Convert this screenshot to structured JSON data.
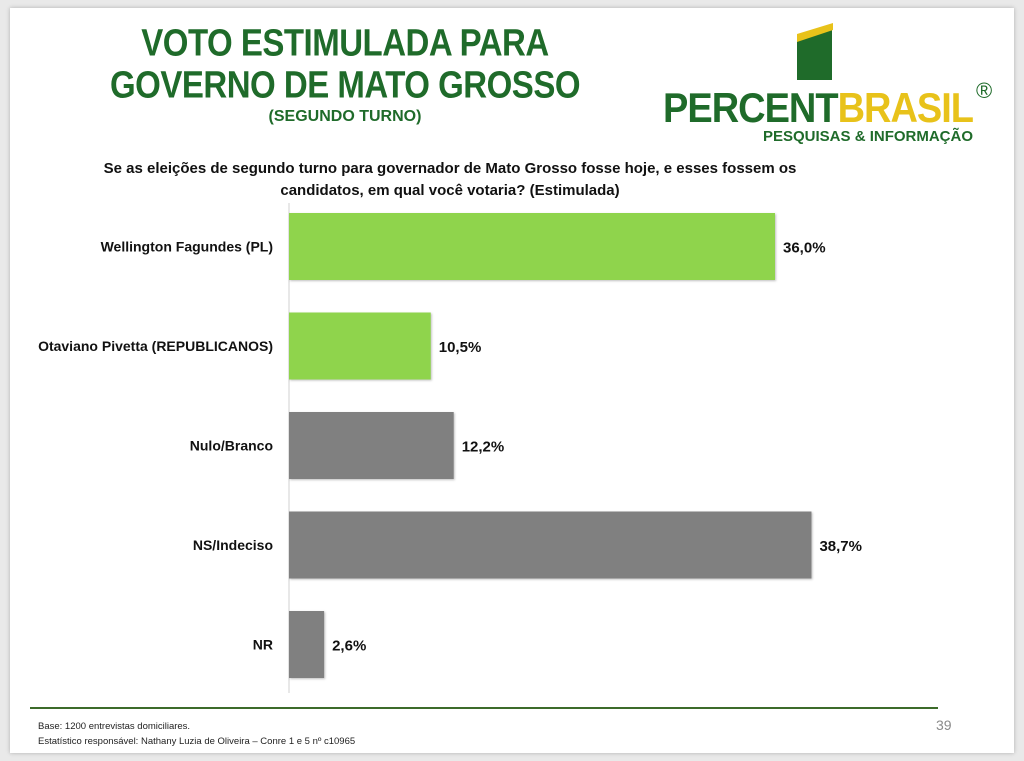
{
  "header": {
    "title_line1": "VOTO ESTIMULADA PARA",
    "title_line2": "GOVERNO DE MATO GROSSO",
    "subtitle": "(SEGUNDO TURNO)"
  },
  "logo": {
    "name_part1": "PERCENT",
    "name_part2": "BRASIL",
    "registered": "®",
    "tagline": "PESQUISAS & INFORMAÇÃO",
    "colors": {
      "green": "#1f6b2a",
      "yellow": "#e8c21a"
    }
  },
  "question": "Se as eleições de segundo turno para governador de Mato Grosso fosse hoje, e esses fossem os candidatos, em qual você votaria? (Estimulada)",
  "chart_data": {
    "type": "bar",
    "orientation": "horizontal",
    "categories": [
      "Wellington Fagundes (PL)",
      "Otaviano Pivetta (REPUBLICANOS)",
      "Nulo/Branco",
      "NS/Indeciso",
      "NR"
    ],
    "values": [
      36.0,
      10.5,
      12.2,
      38.7,
      2.6
    ],
    "value_labels": [
      "36,0%",
      "10,5%",
      "12,2%",
      "38,7%",
      "2,6%"
    ],
    "bar_colors": [
      "#8fd44c",
      "#8fd44c",
      "#808080",
      "#808080",
      "#808080"
    ],
    "xlim": [
      0,
      40
    ],
    "grid": false,
    "legend": "none",
    "title": "",
    "xlabel": "",
    "ylabel": ""
  },
  "footer": {
    "base": "Base: 1200 entrevistas domiciliares.",
    "statistician": "Estatístico responsável: Nathany Luzia de Oliveira – Conre 1 e 5 nº c10965",
    "page_number": "39"
  }
}
